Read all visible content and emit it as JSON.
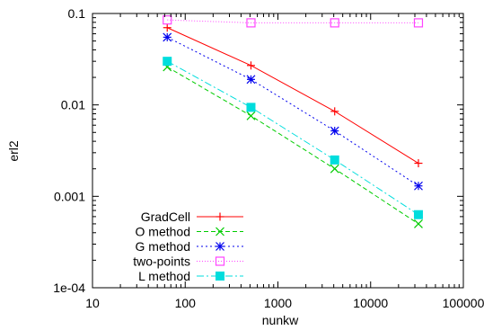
{
  "chart_data": {
    "type": "line",
    "xscale": "log",
    "yscale": "log",
    "xlim": [
      10,
      100000
    ],
    "ylim": [
      0.0001,
      0.1
    ],
    "xlabel": "nunkw",
    "ylabel": "erl2",
    "grid": false,
    "legend_position": "bottom-left",
    "xticks": [
      {
        "value": 10,
        "label": "10"
      },
      {
        "value": 100,
        "label": "100"
      },
      {
        "value": 1000,
        "label": "1000"
      },
      {
        "value": 10000,
        "label": "10000"
      },
      {
        "value": 100000,
        "label": "100000"
      }
    ],
    "yticks": [
      {
        "value": 0.0001,
        "label": "1e-04"
      },
      {
        "value": 0.001,
        "label": "0.001"
      },
      {
        "value": 0.01,
        "label": "0.01"
      },
      {
        "value": 0.1,
        "label": "0.1"
      }
    ],
    "series": [
      {
        "name": "GradCell",
        "color": "#ff0000",
        "dash": "solid",
        "marker": "plus",
        "points": [
          [
            64,
            0.07
          ],
          [
            512,
            0.027
          ],
          [
            4096,
            0.0085
          ],
          [
            32768,
            0.0023
          ]
        ]
      },
      {
        "name": "O method",
        "color": "#00cc00",
        "dash": "dashed",
        "marker": "cross",
        "points": [
          [
            64,
            0.026
          ],
          [
            512,
            0.0076
          ],
          [
            4096,
            0.002
          ],
          [
            32768,
            0.0005
          ]
        ]
      },
      {
        "name": "G method",
        "color": "#0000ee",
        "dash": "dotted",
        "marker": "star",
        "points": [
          [
            64,
            0.055
          ],
          [
            512,
            0.019
          ],
          [
            4096,
            0.0052
          ],
          [
            32768,
            0.0013
          ]
        ]
      },
      {
        "name": "two-points",
        "color": "#ff44ff",
        "dash": "dotted-fine",
        "marker": "open-square",
        "points": [
          [
            64,
            0.085
          ],
          [
            512,
            0.079
          ],
          [
            4096,
            0.079
          ],
          [
            32768,
            0.079
          ]
        ]
      },
      {
        "name": "L method",
        "color": "#00dddd",
        "dash": "dashdot",
        "marker": "filled-square",
        "points": [
          [
            64,
            0.03
          ],
          [
            512,
            0.0094
          ],
          [
            4096,
            0.0025
          ],
          [
            32768,
            0.00063
          ]
        ]
      }
    ]
  }
}
